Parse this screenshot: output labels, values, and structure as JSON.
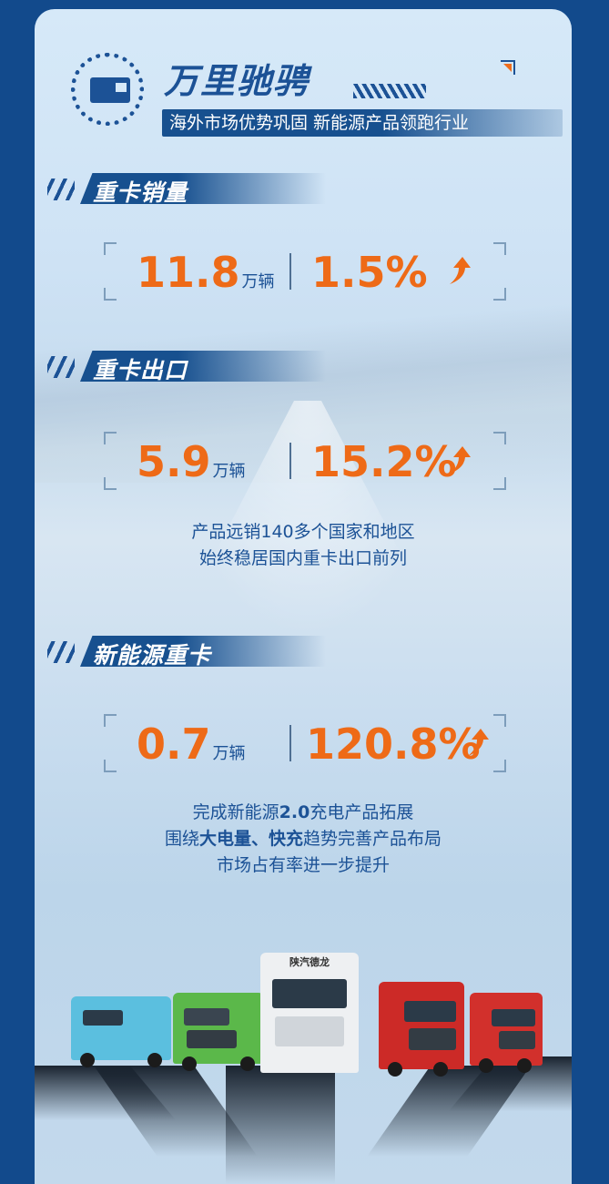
{
  "header": {
    "title": "万里驰骋",
    "subtitle": "海外市场优势巩固  新能源产品领跑行业",
    "logo_icon": "truck-icon"
  },
  "sections": [
    {
      "title": "重卡销量",
      "value": "11.8",
      "unit": "万辆",
      "growth": "1.5%",
      "trend_icon": "arrow-up-icon"
    },
    {
      "title": "重卡出口",
      "value": "5.9",
      "unit": "万辆",
      "growth": "15.2%",
      "trend_icon": "arrow-up-icon",
      "desc": [
        "产品远销140多个国家和地区",
        "始终稳居国内重卡出口前列"
      ]
    },
    {
      "title": "新能源重卡",
      "value": "0.7",
      "unit": "万辆",
      "growth": "120.8%",
      "trend_icon": "arrow-up-icon",
      "desc": {
        "line1_a": "完成新能源",
        "line1_b": "2.0",
        "line1_c": "充电产品拓展",
        "line2_a": "围绕",
        "line2_b": "大电量、快充",
        "line2_c": "趋势完善产品布局",
        "line3": "市场占有率进一步提升"
      }
    }
  ],
  "trucks": {
    "brand_text": "陕汽德龙"
  },
  "colors": {
    "outer": "#124a8c",
    "accent_blue": "#1c5296",
    "accent_orange": "#ee6a17"
  }
}
